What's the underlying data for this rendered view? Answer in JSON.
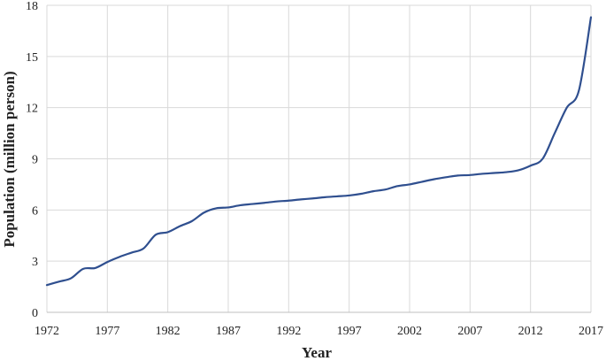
{
  "chart_data": {
    "type": "line",
    "title": "",
    "xlabel": "Year",
    "ylabel": "Population (million person)",
    "xlim": [
      1972,
      2017
    ],
    "ylim": [
      0,
      18
    ],
    "x_ticks": [
      1972,
      1977,
      1982,
      1987,
      1992,
      1997,
      2002,
      2007,
      2012,
      2017
    ],
    "y_ticks": [
      0,
      3,
      6,
      9,
      12,
      15,
      18
    ],
    "grid": true,
    "legend": "none",
    "series": [
      {
        "color": "#2f4f8f",
        "x": [
          1972,
          1973,
          1974,
          1975,
          1976,
          1977,
          1978,
          1979,
          1980,
          1981,
          1982,
          1983,
          1984,
          1985,
          1986,
          1987,
          1988,
          1989,
          1990,
          1991,
          1992,
          1993,
          1994,
          1995,
          1996,
          1997,
          1998,
          1999,
          2000,
          2001,
          2002,
          2003,
          2004,
          2005,
          2006,
          2007,
          2008,
          2009,
          2010,
          2011,
          2012,
          2013,
          2014,
          2015,
          2016,
          2017
        ],
        "values": [
          1.6,
          1.8,
          2.0,
          2.55,
          2.6,
          2.95,
          3.25,
          3.5,
          3.75,
          4.55,
          4.7,
          5.05,
          5.35,
          5.85,
          6.1,
          6.15,
          6.28,
          6.35,
          6.42,
          6.5,
          6.55,
          6.62,
          6.68,
          6.75,
          6.8,
          6.85,
          6.95,
          7.1,
          7.2,
          7.4,
          7.5,
          7.65,
          7.8,
          7.92,
          8.02,
          8.05,
          8.12,
          8.17,
          8.22,
          8.33,
          8.6,
          9.0,
          10.5,
          12.0,
          13.0,
          17.3
        ]
      }
    ]
  }
}
